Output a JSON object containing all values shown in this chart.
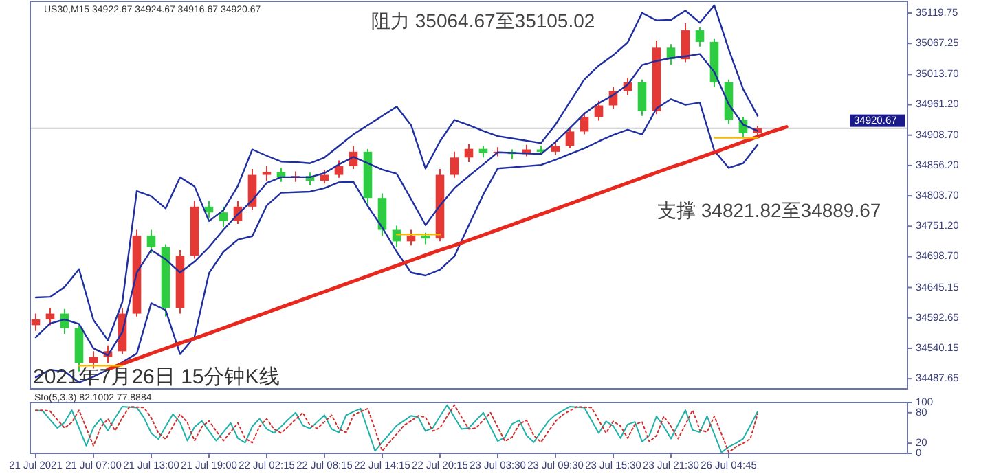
{
  "chart_data": [
    {
      "type": "candlestick",
      "title": "2021年7月26日 15分钟K线",
      "subtitle": "US30,M15  34922.67 34924.67 34916.67 34920.67",
      "annotations": [
        "阻力 35064.67至35105.02",
        "支撑 34821.82至34889.67"
      ],
      "categories": [
        null,
        null,
        null,
        null,
        null,
        null,
        null,
        null,
        null,
        null,
        null,
        null,
        null,
        null,
        null,
        null,
        null,
        null,
        null,
        null,
        null,
        null,
        null,
        null,
        null,
        null,
        null,
        null,
        null,
        null,
        null,
        null,
        null,
        null,
        null,
        null,
        null,
        null,
        null,
        null,
        null,
        null,
        null,
        null,
        null,
        null,
        null,
        null,
        null,
        null,
        null,
        null,
        null,
        null,
        null,
        null,
        null,
        null,
        null,
        null,
        null
      ],
      "ohlc": [
        [
          34580,
          34600,
          34570,
          34590
        ],
        [
          34590,
          34610,
          34580,
          34600
        ],
        [
          34600,
          34608,
          34565,
          34575
        ],
        [
          34575,
          34580,
          34500,
          34515
        ],
        [
          34515,
          34535,
          34505,
          34525
        ],
        [
          34525,
          34545,
          34515,
          34535
        ],
        [
          34535,
          34610,
          34530,
          34600
        ],
        [
          34600,
          34745,
          34595,
          34735
        ],
        [
          34735,
          34745,
          34705,
          34715
        ],
        [
          34715,
          34720,
          34595,
          34610
        ],
        [
          34610,
          34710,
          34600,
          34700
        ],
        [
          34700,
          34795,
          34695,
          34785
        ],
        [
          34785,
          34795,
          34765,
          34775
        ],
        [
          34775,
          34785,
          34750,
          34760
        ],
        [
          34760,
          34795,
          34755,
          34785
        ],
        [
          34785,
          34850,
          34780,
          34840
        ],
        [
          34840,
          34855,
          34830,
          34845
        ],
        [
          34845,
          34852,
          34828,
          34835
        ],
        [
          34835,
          34846,
          34828,
          34838
        ],
        [
          34838,
          34844,
          34822,
          34830
        ],
        [
          34830,
          34848,
          34825,
          34840
        ],
        [
          34840,
          34865,
          34835,
          34855
        ],
        [
          34855,
          34890,
          34850,
          34880
        ],
        [
          34880,
          34885,
          34790,
          34800
        ],
        [
          34800,
          34808,
          34735,
          34745
        ],
        [
          34745,
          34752,
          34715,
          34725
        ],
        [
          34725,
          34745,
          34718,
          34735
        ],
        [
          34735,
          34740,
          34720,
          34730
        ],
        [
          34730,
          34850,
          34725,
          34840
        ],
        [
          34840,
          34880,
          34835,
          34870
        ],
        [
          34870,
          34893,
          34862,
          34885
        ],
        [
          34885,
          34890,
          34870,
          34878
        ],
        [
          34878,
          34888,
          34872,
          34880
        ],
        [
          34880,
          34884,
          34868,
          34876
        ],
        [
          34876,
          34892,
          34872,
          34884
        ],
        [
          34884,
          34890,
          34874,
          34880
        ],
        [
          34880,
          34898,
          34875,
          34890
        ],
        [
          34890,
          34922,
          34886,
          34915
        ],
        [
          34915,
          34948,
          34910,
          34940
        ],
        [
          34940,
          34968,
          34934,
          34960
        ],
        [
          34960,
          34992,
          34954,
          34985
        ],
        [
          34985,
          35008,
          34978,
          35000
        ],
        [
          35000,
          35005,
          34942,
          34950
        ],
        [
          34950,
          35072,
          34945,
          35060
        ],
        [
          35060,
          35066,
          35030,
          35040
        ],
        [
          35040,
          35102,
          35035,
          35090
        ],
        [
          35090,
          35095,
          35062,
          35070
        ],
        [
          35070,
          35075,
          34992,
          35000
        ],
        [
          35000,
          35005,
          34928,
          34935
        ],
        [
          34935,
          34940,
          34905,
          34912
        ],
        [
          34912,
          34924.67,
          34908,
          34920.67
        ],
        null,
        null,
        null,
        null,
        null,
        null,
        null,
        null,
        null,
        null
      ],
      "colors": [
        "#e53935",
        "#e53935",
        "#2ecc40",
        "#2ecc40",
        "#e53935",
        "#e53935",
        "#e53935",
        "#e53935",
        "#2ecc40",
        "#2ecc40",
        "#e53935",
        "#e53935",
        "#2ecc40",
        "#2ecc40",
        "#e53935",
        "#e53935",
        "#e53935",
        "#2ecc40",
        "#e53935",
        "#2ecc40",
        "#e53935",
        "#e53935",
        "#e53935",
        "#2ecc40",
        "#2ecc40",
        "#2ecc40",
        "#e53935",
        "#2ecc40",
        "#e53935",
        "#e53935",
        "#e53935",
        "#2ecc40",
        "#e53935",
        "#2ecc40",
        "#e53935",
        "#2ecc40",
        "#e53935",
        "#e53935",
        "#e53935",
        "#e53935",
        "#e53935",
        "#e53935",
        "#2ecc40",
        "#e53935",
        "#2ecc40",
        "#e53935",
        "#2ecc40",
        "#2ecc40",
        "#2ecc40",
        "#2ecc40",
        "#e53935",
        null,
        null,
        null,
        null,
        null,
        null,
        null,
        null,
        null,
        null
      ],
      "series": [
        {
          "type": "line",
          "color": "#1f2fa0",
          "values": [
            34628,
            34629,
            34646,
            34677,
            34589,
            34554,
            34620,
            34812,
            34803,
            34782,
            34836,
            34820,
            34760,
            34779,
            34821,
            34884,
            34873,
            34863,
            34862,
            34860,
            34870,
            34890,
            34910,
            34926,
            34942,
            34958,
            34926,
            34851,
            34898,
            34935,
            34926,
            34916,
            34907,
            34903,
            34899,
            34895,
            34927,
            34966,
            35005,
            35029,
            35047,
            35069,
            35120,
            35107,
            35108,
            35124,
            35103,
            35133,
            35057,
            34988,
            34942,
            null,
            null,
            null,
            null,
            null,
            null,
            null,
            null,
            null,
            null
          ]
        },
        {
          "type": "line",
          "color": "#1f2fa0",
          "values": [
            34559,
            34583,
            34590,
            34582,
            34540,
            34528,
            34568,
            34671,
            34710,
            34694,
            34671,
            34690,
            34715,
            34745,
            34772,
            34796,
            34826,
            34836,
            34836,
            34836,
            34843,
            34858,
            34871,
            34860,
            34849,
            34842,
            34798,
            34753,
            34787,
            34817,
            34838,
            34858,
            34879,
            34878,
            34877,
            34876,
            34897,
            34921,
            34946,
            34964,
            34978,
            34996,
            35030,
            35037,
            35042,
            35045,
            35049,
            35018,
            34962,
            34927,
            34916,
            null,
            null,
            null,
            null,
            null,
            null,
            null,
            null,
            null,
            null
          ]
        },
        {
          "type": "line",
          "color": "#1f2fa0",
          "values": [
            34490,
            34503,
            34500,
            34481,
            34491,
            34503,
            34516,
            34531,
            34618,
            34606,
            34530,
            34560,
            34670,
            34707,
            34728,
            34734,
            34787,
            34809,
            34810,
            34811,
            34817,
            34827,
            34828,
            34786,
            34749,
            34707,
            34671,
            34666,
            34676,
            34699,
            34753,
            34806,
            34851,
            34853,
            34855,
            34857,
            34866,
            34876,
            34886,
            34898,
            34909,
            34918,
            34910,
            34955,
            34971,
            34961,
            34965,
            34882,
            34852,
            34860,
            34892,
            null,
            null,
            null,
            null,
            null,
            null,
            null,
            null,
            null,
            null
          ]
        },
        {
          "type": "line",
          "color": "#e8281e",
          "values": [
            null,
            null,
            null,
            null,
            null,
            34504,
            34513,
            34522,
            34531,
            34540,
            34549,
            34557,
            34566,
            34575,
            34584,
            34593,
            34602,
            34611,
            34620,
            34629,
            34638,
            34647,
            34656,
            34665,
            34674,
            34683,
            34692,
            34701,
            34710,
            34718,
            34727,
            34736,
            34745,
            34754,
            34763,
            34772,
            34781,
            34790,
            34799,
            34808,
            34817,
            34826,
            34835,
            34844,
            34853,
            34861,
            34870,
            34879,
            34888,
            34897,
            34906,
            34915,
            34923,
            null,
            null,
            null,
            null,
            null,
            null,
            null,
            null
          ]
        },
        {
          "type": "line",
          "color": "#f5b800",
          "values": [
            null,
            null,
            null,
            34510,
            34510,
            34510,
            34510,
            null,
            null,
            null,
            null,
            null,
            null,
            null,
            null,
            null,
            null,
            null,
            null,
            null,
            null,
            null,
            null,
            null,
            null,
            null,
            null,
            null,
            null,
            null,
            null,
            null,
            null,
            null,
            null,
            null,
            null,
            null,
            null,
            null,
            null,
            null,
            null,
            null,
            null,
            null,
            null,
            null,
            null,
            null,
            null,
            null,
            null,
            null,
            null,
            null,
            null,
            null,
            null,
            null,
            null
          ]
        },
        {
          "type": "line",
          "color": "#f5b800",
          "values": [
            null,
            null,
            null,
            null,
            null,
            null,
            null,
            null,
            null,
            null,
            null,
            null,
            null,
            null,
            null,
            null,
            null,
            null,
            null,
            null,
            null,
            null,
            null,
            null,
            null,
            34737,
            34737,
            34737,
            34737,
            null,
            null,
            null,
            null,
            null,
            null,
            null,
            null,
            null,
            null,
            null,
            null,
            null,
            null,
            null,
            null,
            null,
            null,
            null,
            null,
            null,
            null,
            null,
            null,
            null,
            null,
            null,
            null,
            null,
            null,
            null,
            null
          ]
        },
        {
          "type": "line",
          "color": "#f5b800",
          "values": [
            null,
            null,
            null,
            null,
            null,
            null,
            null,
            null,
            null,
            null,
            null,
            null,
            null,
            null,
            null,
            null,
            null,
            null,
            null,
            null,
            null,
            null,
            null,
            null,
            null,
            null,
            null,
            null,
            null,
            null,
            null,
            null,
            null,
            null,
            null,
            null,
            null,
            null,
            null,
            null,
            null,
            null,
            null,
            null,
            null,
            null,
            null,
            34904,
            34904,
            34904,
            34904,
            null,
            null,
            null,
            null,
            null,
            null,
            null,
            null,
            null,
            null
          ]
        }
      ],
      "ylim": [
        34470,
        35140
      ],
      "yticks": [
        {
          "value": 35119.75,
          "label": "35119.75"
        },
        {
          "value": 35067.25,
          "label": "35067.25"
        },
        {
          "value": 35013.7,
          "label": "35013.70"
        },
        {
          "value": 34961.2,
          "label": "34961.20"
        },
        {
          "value": 34908.7,
          "label": "34908.70"
        },
        {
          "value": 34856.2,
          "label": "34856.20"
        },
        {
          "value": 34803.7,
          "label": "34803.70"
        },
        {
          "value": 34751.2,
          "label": "34751.20"
        },
        {
          "value": 34698.7,
          "label": "34698.70"
        },
        {
          "value": 34645.15,
          "label": "34645.15"
        },
        {
          "value": 34592.65,
          "label": "34592.65"
        },
        {
          "value": 34540.15,
          "label": "34540.15"
        },
        {
          "value": 34487.65,
          "label": "34487.65"
        }
      ],
      "ref_lines": [
        {
          "axis": "y",
          "value": 34920.67,
          "label": "34920.67",
          "color": "#c8c8c8"
        }
      ],
      "tick_labels": "y"
    },
    {
      "type": "line",
      "title": "Sto(5,3,3) 82.1002 77.8884",
      "categories": [
        "21 Jul 2021",
        null,
        null,
        null,
        null,
        null,
        null,
        null,
        "21 Jul 07:00",
        null,
        null,
        null,
        null,
        null,
        null,
        null,
        "21 Jul 13:00",
        null,
        null,
        null,
        null,
        null,
        null,
        null,
        "21 Jul 19:00",
        null,
        null,
        null,
        null,
        null,
        null,
        null,
        "22 Jul 02:15",
        null,
        null,
        null,
        null,
        null,
        null,
        null,
        "22 Jul 08:15",
        null,
        null,
        null,
        null,
        null,
        null,
        null,
        "22 Jul 14:15",
        null,
        null,
        null,
        null,
        null,
        null,
        null,
        "22 Jul 20:15",
        null,
        null,
        null,
        null,
        null,
        null,
        null,
        "23 Jul 03:30",
        null,
        null,
        null,
        null,
        null,
        null,
        null,
        "23 Jul 09:30",
        null,
        null,
        null,
        null,
        null,
        null,
        null,
        "23 Jul 15:30",
        null,
        null,
        null,
        null,
        null,
        null,
        null,
        "23 Jul 21:30",
        null,
        null,
        null,
        null,
        null,
        null,
        null,
        "26 Jul 04:45",
        null,
        null,
        null,
        null,
        null,
        null,
        null,
        null,
        null,
        null,
        null,
        null,
        null,
        null,
        null,
        null,
        null,
        null,
        null,
        null,
        null,
        null,
        null,
        null
      ],
      "series": [
        {
          "color": "#20b2aa",
          "values": [
            85,
            83,
            66,
            50,
            61,
            85,
            50,
            15,
            51,
            68,
            45,
            70,
            92,
            91,
            90,
            70,
            40,
            28,
            53,
            77,
            61,
            25,
            52,
            64,
            44,
            25,
            42,
            60,
            30,
            21,
            53,
            68,
            48,
            40,
            53,
            67,
            80,
            55,
            49,
            62,
            75,
            48,
            41,
            75,
            82,
            88,
            47,
            5,
            22,
            38,
            55,
            64,
            74,
            71,
            44,
            50,
            73,
            95,
            71,
            48,
            50,
            65,
            80,
            52,
            24,
            32,
            58,
            65,
            35,
            22,
            43,
            63,
            76,
            84,
            92,
            91,
            90,
            65,
            40,
            63,
            54,
            30,
            57,
            62,
            23,
            35,
            73,
            53,
            29,
            57,
            85,
            46,
            42,
            73,
            38,
            2,
            13,
            20,
            29,
            55,
            82.1002,
            null,
            null,
            null,
            null,
            null,
            null,
            null,
            null,
            null,
            null,
            null,
            null,
            null,
            null,
            null,
            null,
            null,
            null,
            null,
            null
          ]
        },
        {
          "color": "#d03030",
          "line_style": "dotted",
          "values": [
            84,
            85,
            83,
            66,
            50,
            61,
            85,
            50,
            15,
            51,
            68,
            45,
            70,
            92,
            91,
            90,
            70,
            40,
            28,
            53,
            77,
            61,
            25,
            52,
            64,
            44,
            25,
            42,
            60,
            30,
            21,
            53,
            68,
            48,
            40,
            53,
            67,
            80,
            55,
            49,
            62,
            75,
            48,
            41,
            75,
            82,
            88,
            47,
            5,
            22,
            38,
            55,
            64,
            74,
            71,
            44,
            50,
            73,
            95,
            71,
            48,
            50,
            65,
            80,
            52,
            24,
            32,
            58,
            65,
            35,
            22,
            43,
            63,
            76,
            84,
            92,
            91,
            90,
            65,
            40,
            63,
            54,
            30,
            57,
            62,
            23,
            35,
            73,
            53,
            29,
            57,
            85,
            46,
            42,
            73,
            38,
            2,
            13,
            20,
            29,
            77.8884,
            null,
            null,
            null,
            null,
            null,
            null,
            null,
            null,
            null,
            null,
            null,
            null,
            null,
            null,
            null,
            null,
            null,
            null,
            null,
            null
          ]
        }
      ],
      "ylim": [
        0,
        100
      ],
      "yticks": [
        100,
        80,
        20,
        0
      ]
    }
  ]
}
